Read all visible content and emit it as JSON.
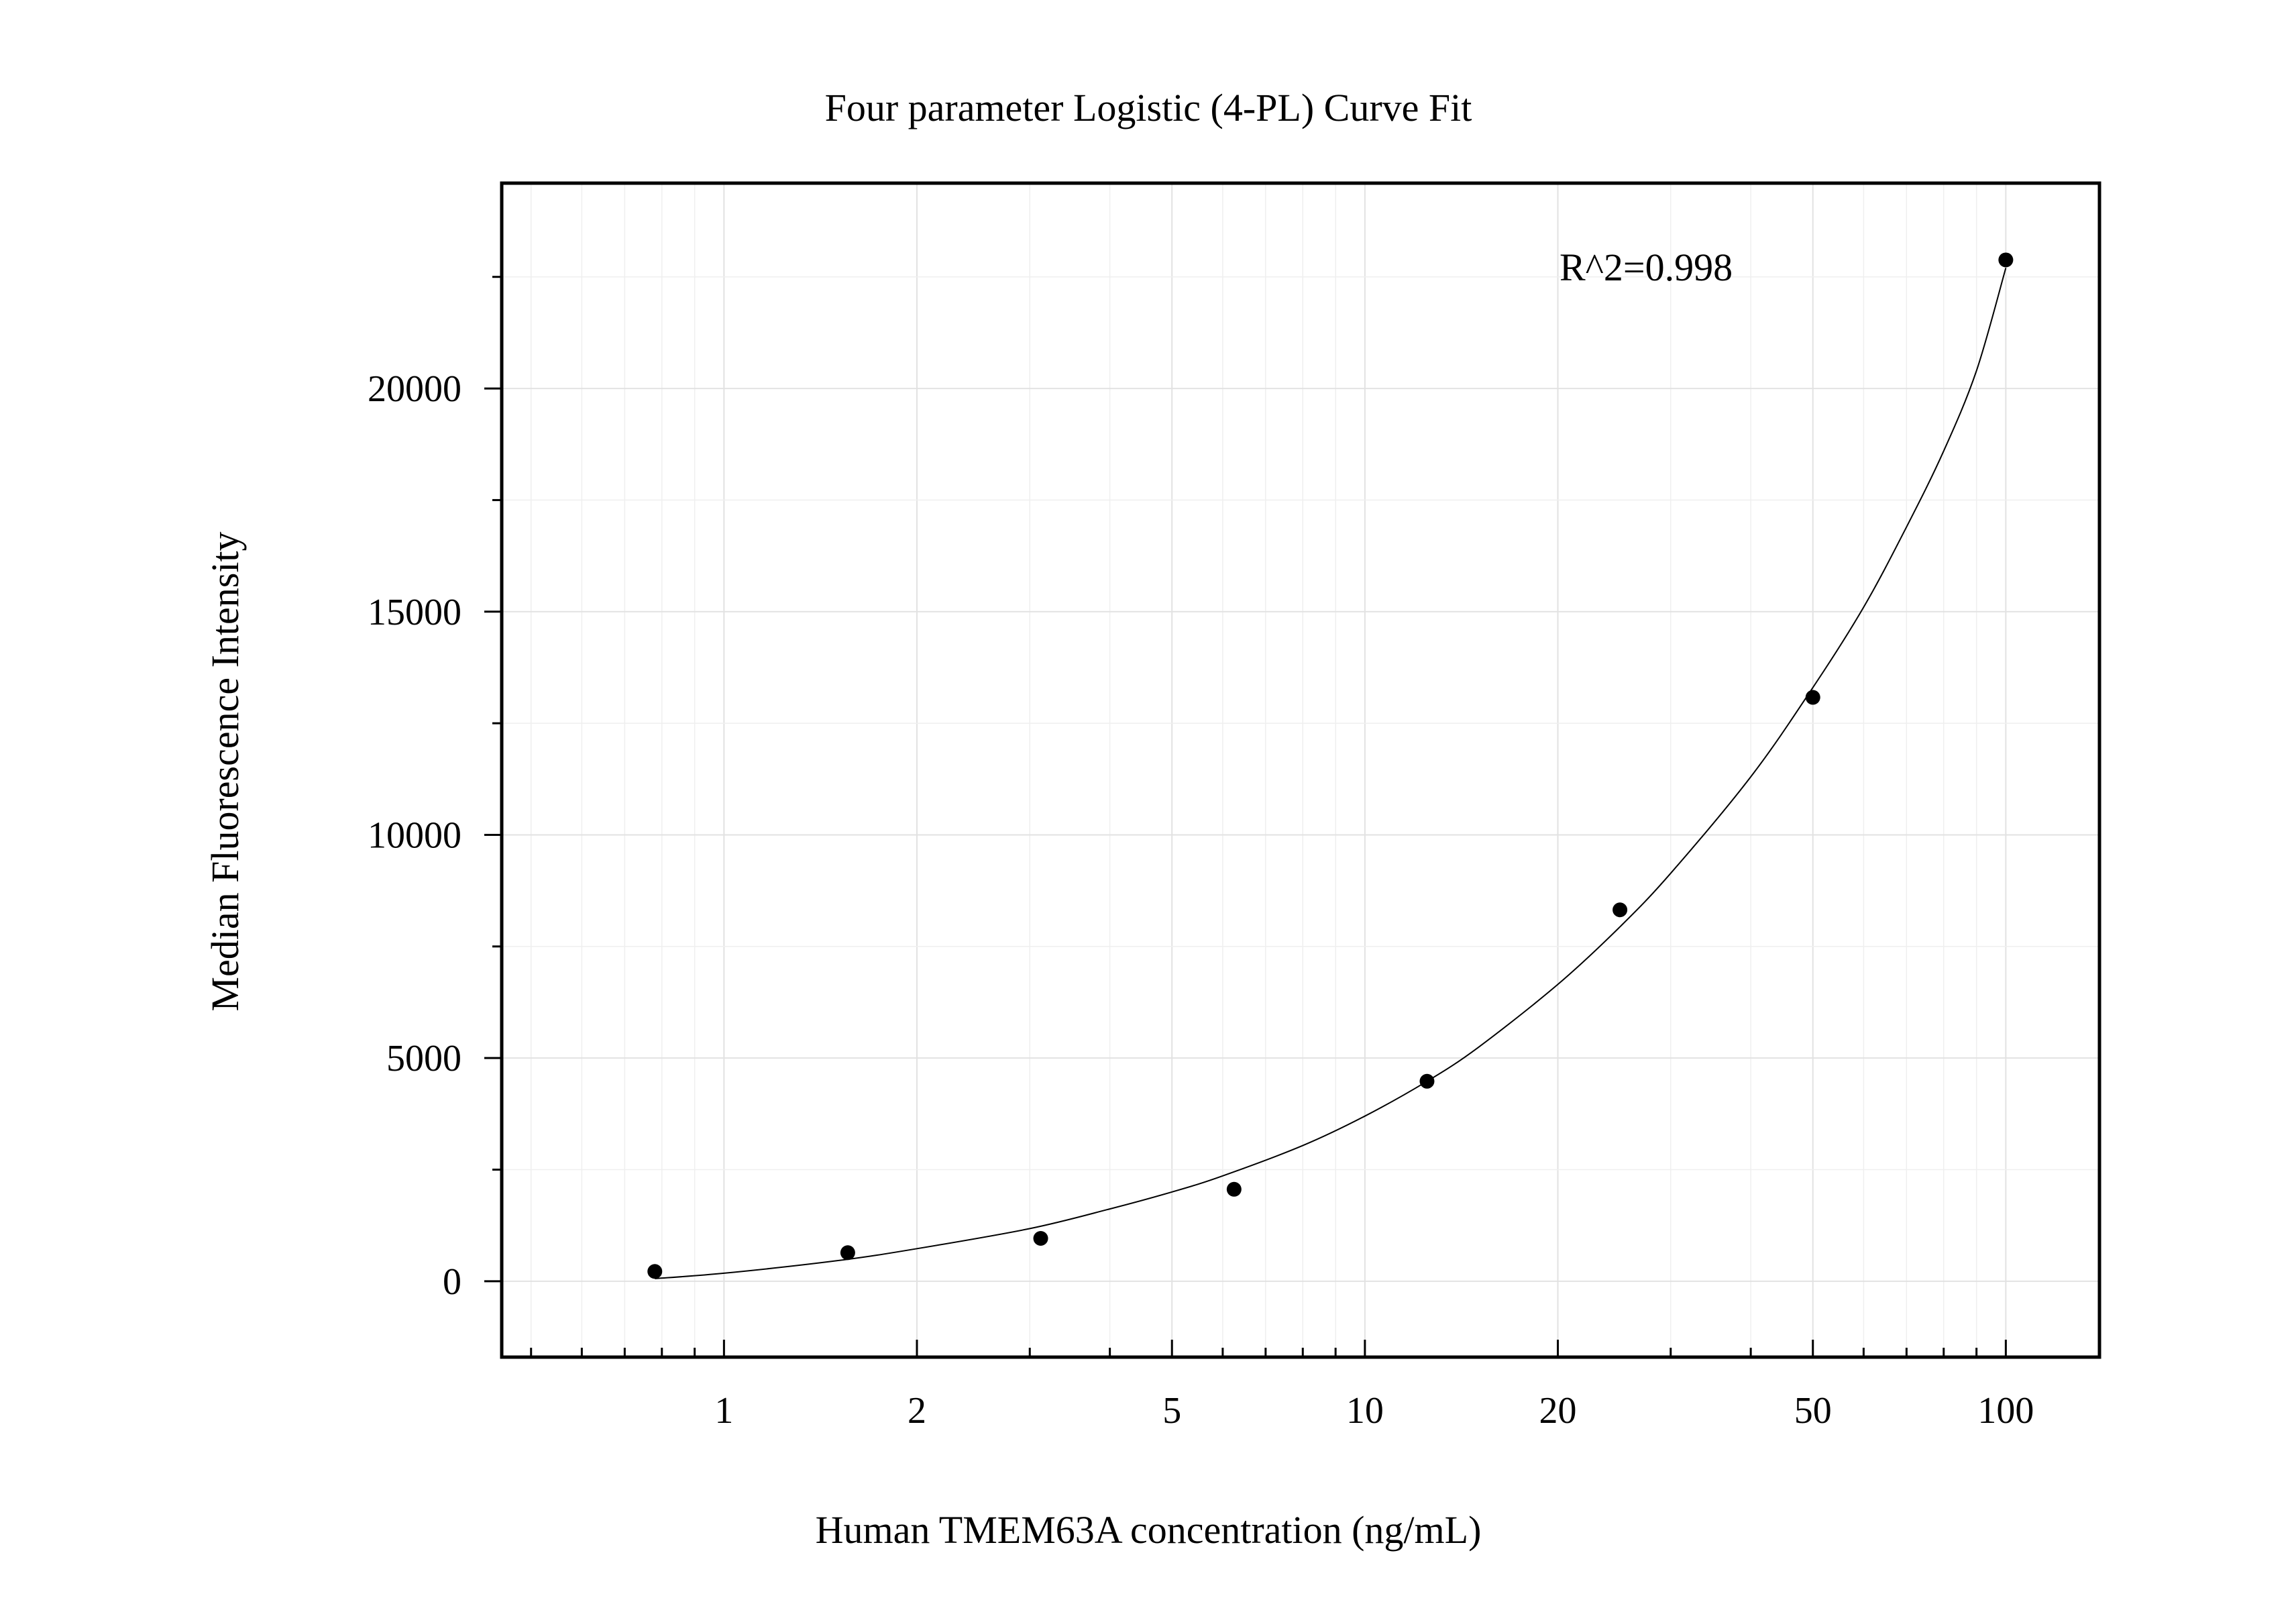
{
  "chart_data": {
    "type": "scatter",
    "title": "Four parameter Logistic (4-PL) Curve Fit",
    "xlabel": "Human TMEM63A concentration (ng/mL)",
    "ylabel": "Median Fluorescence Intensity",
    "x_scale": "log",
    "xlim": [
      0.45,
      140
    ],
    "ylim": [
      -1700,
      24600
    ],
    "x_ticks": [
      1,
      2,
      5,
      10,
      20,
      50,
      100
    ],
    "x_tick_labels": [
      "1",
      "2",
      "5",
      "10",
      "20",
      "50",
      "100"
    ],
    "y_ticks": [
      0,
      5000,
      10000,
      15000,
      20000
    ],
    "y_tick_labels": [
      "0",
      "5000",
      "10000",
      "15000",
      "20000"
    ],
    "y_minor_ticks": [
      2500,
      7500,
      12500,
      17500,
      22500
    ],
    "grid": true,
    "annotation": "R^2=0.998",
    "series": [
      {
        "kind": "points",
        "x": [
          0.78,
          1.56,
          3.12,
          6.25,
          12.5,
          25,
          50,
          100
        ],
        "y": [
          220,
          640,
          960,
          2060,
          4480,
          8320,
          13080,
          22880
        ]
      },
      {
        "kind": "fit_curve",
        "x": [
          0.78,
          1,
          1.5,
          2,
          3,
          4,
          5,
          6,
          8,
          10,
          12.5,
          15,
          20,
          25,
          30,
          40,
          50,
          60,
          70,
          80,
          90,
          100
        ],
        "y": [
          60,
          180,
          460,
          730,
          1180,
          1620,
          2000,
          2360,
          3040,
          3700,
          4480,
          5230,
          6650,
          7940,
          9140,
          11300,
          13300,
          15100,
          16900,
          18600,
          20400,
          22700
        ]
      }
    ]
  }
}
